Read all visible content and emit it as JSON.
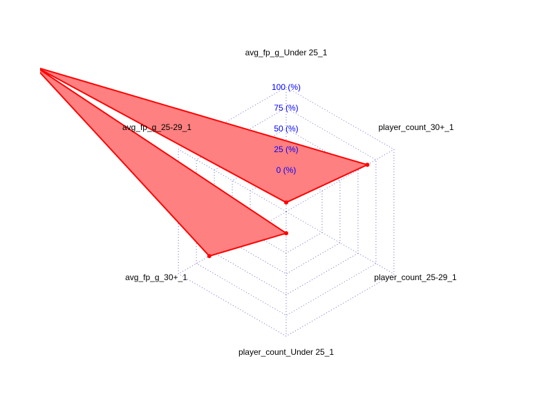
{
  "chart_data": {
    "type": "radar",
    "title": "",
    "axes": [
      "avg_fp_g_Under 25_1",
      "player_count_30+_1",
      "player_count_25-29_1",
      "player_count_Under 25_1",
      "avg_fp_g_30+_1",
      "avg_fp_g_25-29_1"
    ],
    "tick_labels": [
      "0 (%)",
      "25 (%)",
      "50 (%)",
      "75 (%)",
      "100 (%)"
    ],
    "scale_min_percent": -50,
    "scale_max_percent": 100,
    "series": [
      {
        "values_percent": [
          -39,
          63,
          -398,
          -24,
          57,
          301
        ]
      }
    ],
    "grid": true,
    "colors": {
      "series_line": "#ff0000",
      "series_fill": "#ff8080",
      "grid": "#6666cc",
      "tick_label": "#0000ff",
      "axis_label": "#000000"
    }
  }
}
